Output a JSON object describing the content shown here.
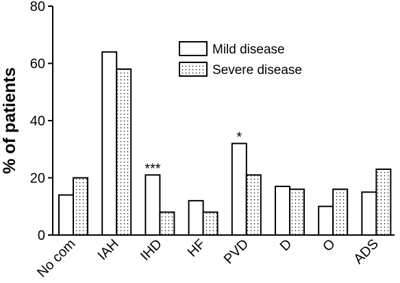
{
  "chart_data": {
    "type": "bar",
    "ylabel": "% of patients",
    "xlabel": "",
    "ylim": [
      0,
      80
    ],
    "yticks": [
      0,
      20,
      40,
      60,
      80
    ],
    "categories": [
      "No com",
      "IAH",
      "IHD",
      "HF",
      "PVD",
      "D",
      "O",
      "ADS"
    ],
    "series": [
      {
        "name": "Mild disease",
        "values": [
          14,
          64,
          21,
          12,
          32,
          17,
          10,
          15
        ],
        "fill": "#ffffff"
      },
      {
        "name": "Severe disease",
        "values": [
          20,
          58,
          8,
          8,
          21,
          16,
          16,
          23
        ],
        "fill": "dotted"
      }
    ],
    "annotations": [
      {
        "category": "IHD",
        "text": "***"
      },
      {
        "category": "PVD",
        "text": "*"
      }
    ],
    "legend_position": "top-right",
    "grid": false
  }
}
